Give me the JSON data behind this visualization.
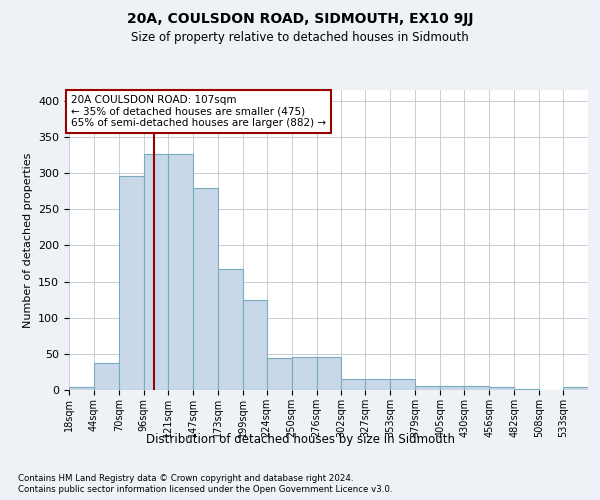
{
  "title": "20A, COULSDON ROAD, SIDMOUTH, EX10 9JJ",
  "subtitle": "Size of property relative to detached houses in Sidmouth",
  "xlabel": "Distribution of detached houses by size in Sidmouth",
  "ylabel": "Number of detached properties",
  "bar_heights": [
    4,
    38,
    296,
    327,
    327,
    279,
    168,
    124,
    44,
    46,
    46,
    15,
    15,
    15,
    5,
    5,
    6,
    4,
    2,
    0,
    4
  ],
  "bar_color": "#c8d8e8",
  "bar_edge_color": "#7aaabf",
  "red_line_x": 107,
  "annotation_title": "20A COULSDON ROAD: 107sqm",
  "annotation_line1": "← 35% of detached houses are smaller (475)",
  "annotation_line2": "65% of semi-detached houses are larger (882) →",
  "x_labels": [
    "18sqm",
    "44sqm",
    "70sqm",
    "96sqm",
    "121sqm",
    "147sqm",
    "173sqm",
    "199sqm",
    "224sqm",
    "250sqm",
    "276sqm",
    "302sqm",
    "327sqm",
    "353sqm",
    "379sqm",
    "405sqm",
    "430sqm",
    "456sqm",
    "482sqm",
    "508sqm",
    "533sqm"
  ],
  "bin_edges": [
    18,
    44,
    70,
    96,
    121,
    147,
    173,
    199,
    224,
    250,
    276,
    302,
    327,
    353,
    379,
    405,
    430,
    456,
    482,
    508,
    533,
    559
  ],
  "ylim": [
    0,
    415
  ],
  "yticks": [
    0,
    50,
    100,
    150,
    200,
    250,
    300,
    350,
    400
  ],
  "footnote1": "Contains HM Land Registry data © Crown copyright and database right 2024.",
  "footnote2": "Contains public sector information licensed under the Open Government Licence v3.0.",
  "background_color": "#eef2f6",
  "plot_bg_color": "#ffffff"
}
